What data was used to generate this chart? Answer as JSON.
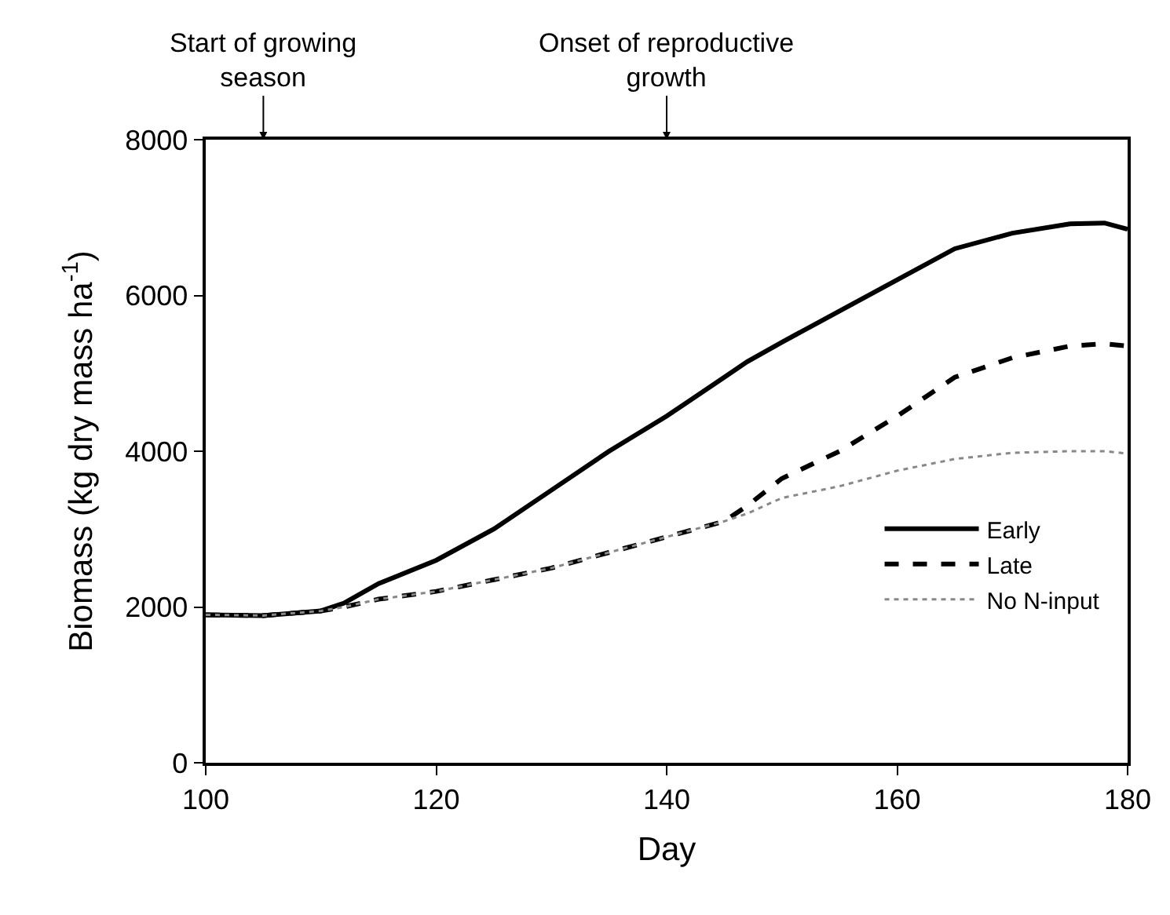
{
  "chart_data": {
    "type": "line",
    "xlabel": "Day",
    "ylabel": "Biomass (kg dry mass ha$^{-1}$)",
    "x": [
      100,
      105,
      110,
      112,
      115,
      120,
      125,
      130,
      135,
      140,
      145,
      147,
      150,
      155,
      160,
      165,
      170,
      175,
      178,
      180
    ],
    "series": [
      {
        "name": "Early",
        "color": "#000000",
        "line_style": "solid",
        "values": [
          1900,
          1890,
          1950,
          2050,
          2300,
          2600,
          3000,
          3500,
          4000,
          4450,
          4950,
          5150,
          5400,
          5800,
          6200,
          6600,
          6800,
          6920,
          6930,
          6850
        ]
      },
      {
        "name": "Late",
        "color": "#000000",
        "line_style": "dashed",
        "values": [
          1900,
          1890,
          1950,
          2000,
          2100,
          2200,
          2350,
          2500,
          2700,
          2900,
          3100,
          3300,
          3650,
          4000,
          4450,
          4950,
          5200,
          5350,
          5380,
          5350
        ]
      },
      {
        "name": "No N-input",
        "color": "#888888",
        "line_style": "dotted",
        "values": [
          1900,
          1890,
          1950,
          2000,
          2100,
          2200,
          2350,
          2500,
          2700,
          2900,
          3100,
          3200,
          3400,
          3550,
          3750,
          3900,
          3980,
          4000,
          4000,
          3970
        ]
      }
    ],
    "xlim": [
      100,
      180
    ],
    "xticks": [
      100,
      120,
      140,
      160,
      180
    ],
    "ylim": [
      0,
      8000
    ],
    "yticks": [
      0,
      2000,
      4000,
      6000,
      8000
    ],
    "legend": "bottom right",
    "ref_lines": [
      {
        "axis": "x",
        "value": 105,
        "label": "Start of growing\nseason"
      },
      {
        "axis": "x",
        "value": 140,
        "label": "Onset of reproductive\ngrowth"
      }
    ]
  }
}
